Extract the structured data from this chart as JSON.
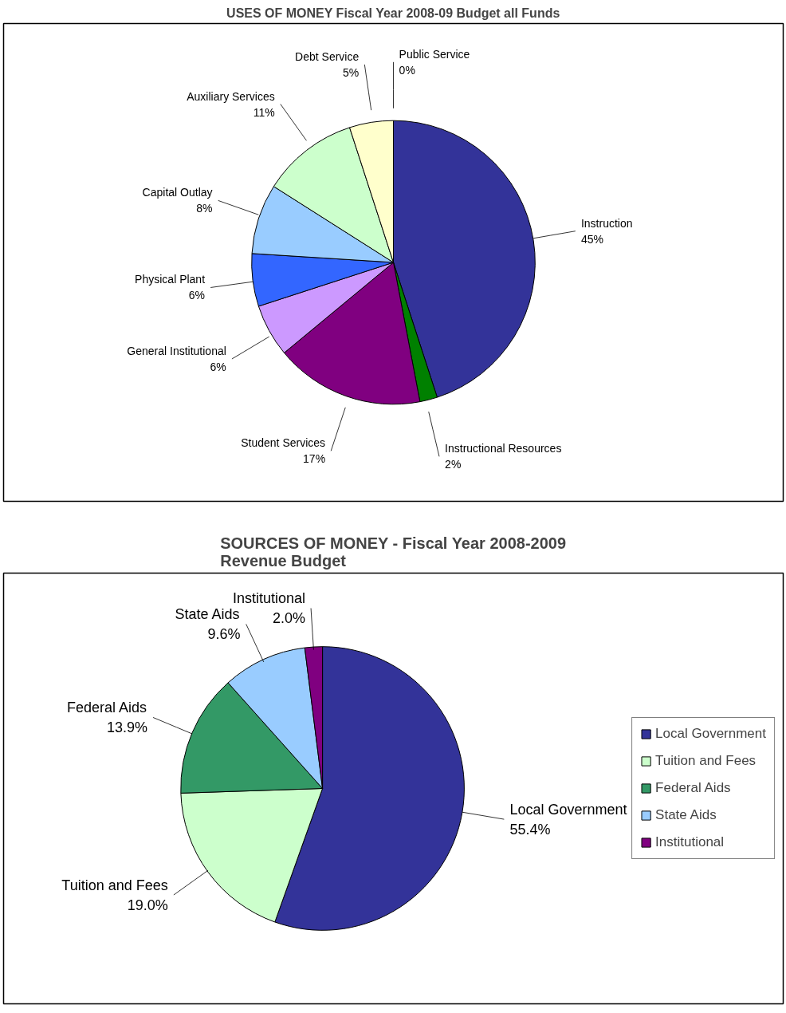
{
  "chart_data": [
    {
      "type": "pie",
      "title": "USES OF MONEY Fiscal Year 2008-09 Budget all Funds",
      "categories": [
        "Instruction",
        "Instructional Resources",
        "Student Services",
        "General Institutional",
        "Physical Plant",
        "Capital Outlay",
        "Auxiliary Services",
        "Debt Service",
        "Public Service"
      ],
      "values": [
        45,
        2,
        17,
        6,
        6,
        8,
        11,
        5,
        0
      ],
      "value_labels": [
        "45%",
        "2%",
        "17%",
        "6%",
        "6%",
        "8%",
        "11%",
        "5%",
        "0%"
      ],
      "colors": [
        "#333399",
        "#008000",
        "#800080",
        "#cc99ff",
        "#3366ff",
        "#99ccff",
        "#ccffcc",
        "#ffffcc",
        "#993366"
      ],
      "legend": false
    },
    {
      "type": "pie",
      "title": "SOURCES OF MONEY - Fiscal Year 2008-2009 Revenue Budget",
      "categories": [
        "Local Government",
        "Tuition and Fees",
        "Federal Aids",
        "State Aids",
        "Institutional"
      ],
      "values": [
        55.4,
        19.0,
        13.9,
        9.6,
        2.0
      ],
      "value_labels": [
        "55.4%",
        "19.0%",
        "13.9%",
        "9.6%",
        "2.0%"
      ],
      "colors": [
        "#333399",
        "#ccffcc",
        "#339966",
        "#99ccff",
        "#800080"
      ],
      "legend": "right"
    }
  ]
}
